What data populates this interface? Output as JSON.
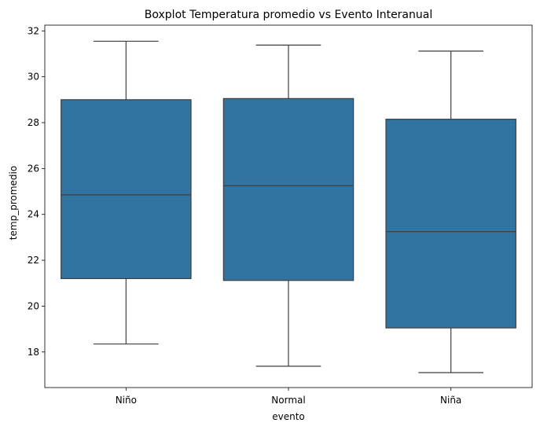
{
  "chart_data": {
    "type": "box",
    "title": "Boxplot Temperatura promedio vs Evento Interanual",
    "xlabel": "evento",
    "ylabel": "temp_promedio",
    "categories": [
      "Niño",
      "Normal",
      "Niña"
    ],
    "boxes": [
      {
        "category": "Niño",
        "whisker_low": 18.35,
        "q1": 21.2,
        "median": 24.85,
        "q3": 29.0,
        "whisker_high": 31.55
      },
      {
        "category": "Normal",
        "whisker_low": 17.38,
        "q1": 21.12,
        "median": 25.25,
        "q3": 29.05,
        "whisker_high": 31.38
      },
      {
        "category": "Niña",
        "whisker_low": 17.1,
        "q1": 19.05,
        "median": 23.25,
        "q3": 28.15,
        "whisker_high": 31.12
      }
    ],
    "ylim": [
      16.45,
      32.25
    ],
    "yticks": [
      18,
      20,
      22,
      24,
      26,
      28,
      30,
      32
    ],
    "grid": false,
    "box_color": "#3274a1",
    "line_color": "#3f3f3f"
  }
}
